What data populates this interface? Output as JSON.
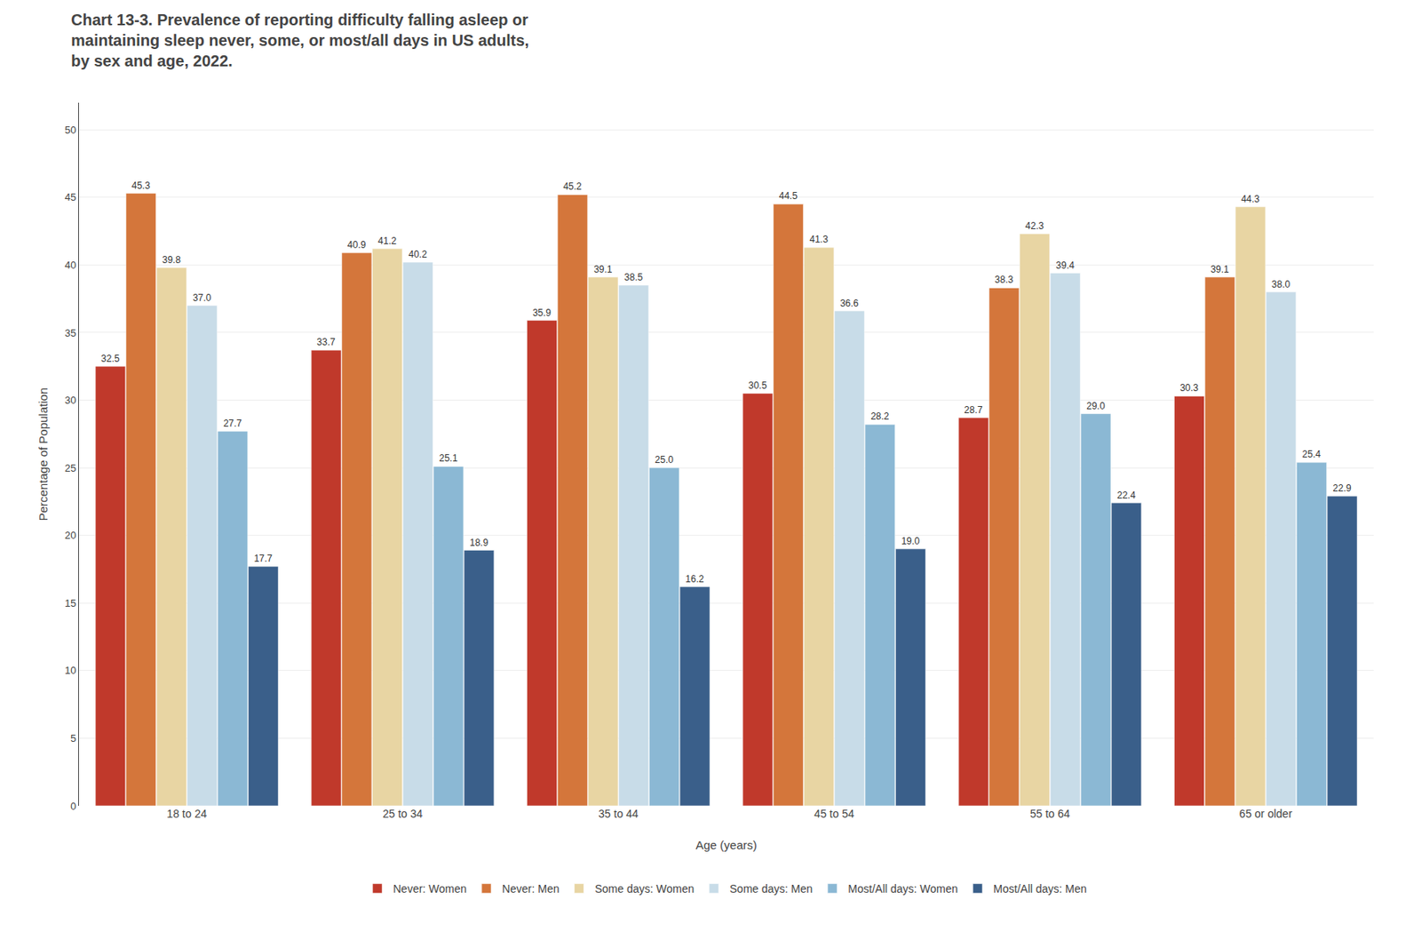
{
  "chart_data": {
    "type": "bar",
    "title": "Chart 13-3.",
    "subtitle": " Prevalence of reporting difficulty falling asleep or\nmaintaining sleep never, some, or most/all days in US adults,\nby sex and age, 2022.",
    "xlabel": "Age (years)",
    "ylabel": "Percentage of Population",
    "categories": [
      "18 to 24",
      "25 to 34",
      "35 to 44",
      "45 to 54",
      "55 to 64",
      "65 or older"
    ],
    "series": [
      {
        "name": "Never: Women",
        "color": "#C0392B",
        "values": [
          32.5,
          33.7,
          35.9,
          30.5,
          28.7,
          30.3
        ],
        "value_labels": [
          "32.5",
          "33.7",
          "35.9",
          "30.5",
          "28.7",
          "30.3"
        ]
      },
      {
        "name": "Never: Men",
        "color": "#D4763B",
        "values": [
          45.3,
          40.9,
          45.2,
          44.5,
          38.3,
          39.1
        ],
        "value_labels": [
          "45.3",
          "40.9",
          "45.2",
          "44.5",
          "38.3",
          "39.1"
        ]
      },
      {
        "name": "Some days: Women",
        "color": "#E8D5A3",
        "values": [
          39.8,
          41.2,
          39.1,
          41.3,
          42.3,
          44.3
        ],
        "value_labels": [
          "39.8",
          "41.2",
          "39.1",
          "41.3",
          "42.3",
          "44.3"
        ]
      },
      {
        "name": "Some days: Men",
        "color": "#C8DCE8",
        "values": [
          37.0,
          40.2,
          38.5,
          36.6,
          39.4,
          38.0
        ],
        "value_labels": [
          "37.0",
          "40.2",
          "38.5",
          "36.6",
          "39.4",
          "38.0"
        ]
      },
      {
        "name": "Most/All days: Women",
        "color": "#8BB8D4",
        "values": [
          27.7,
          25.1,
          25.0,
          28.2,
          29.0,
          25.4
        ],
        "value_labels": [
          "27.7",
          "25.1",
          "25.0",
          "28.2",
          "29.0",
          "25.4"
        ]
      },
      {
        "name": "Most/All days: Men",
        "color": "#3A5F8A",
        "values": [
          17.7,
          18.9,
          16.2,
          19.0,
          22.4,
          22.9
        ],
        "value_labels": [
          "17.7",
          "18.9",
          "16.2",
          "19.0",
          "22.4",
          "22.9"
        ]
      }
    ],
    "ylim": [
      0,
      52
    ],
    "yticks": [
      0,
      5,
      10,
      15,
      20,
      25,
      30,
      35,
      40,
      45,
      50
    ],
    "grid": true,
    "legend": "bottom",
    "data_labels": true
  }
}
